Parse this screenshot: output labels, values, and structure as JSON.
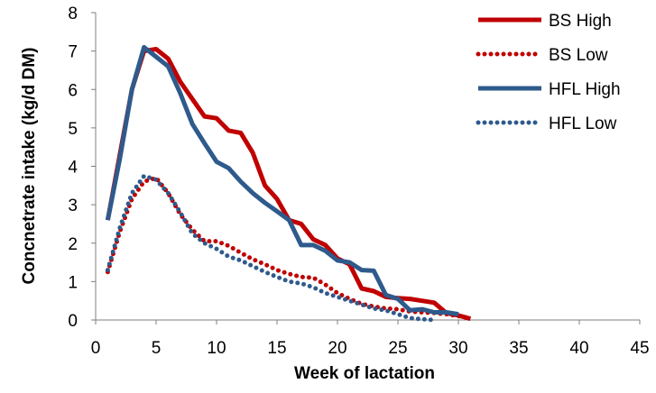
{
  "chart_data": {
    "type": "line",
    "title": "",
    "xlabel": "Week of lactation",
    "ylabel": "Concnetrate intake (kg/d DM)",
    "xlim": [
      0,
      45
    ],
    "ylim": [
      0,
      8
    ],
    "xticks": [
      0,
      5,
      10,
      15,
      20,
      25,
      30,
      35,
      40,
      45
    ],
    "yticks": [
      0,
      1,
      2,
      3,
      4,
      5,
      6,
      7,
      8
    ],
    "grid": false,
    "legend_position": "top-right",
    "series": [
      {
        "name": "BS High",
        "color": "#C00000",
        "style": "solid",
        "x": [
          1,
          2,
          3,
          4,
          5,
          6,
          7,
          8,
          9,
          10,
          11,
          12,
          13,
          14,
          15,
          16,
          17,
          18,
          19,
          20,
          21,
          22,
          23,
          24,
          25,
          26,
          27,
          28,
          29,
          30,
          31
        ],
        "y": [
          2.6,
          4.3,
          6.0,
          7.0,
          7.05,
          6.8,
          6.2,
          5.75,
          5.3,
          5.25,
          4.93,
          4.87,
          4.35,
          3.5,
          3.15,
          2.6,
          2.5,
          2.1,
          1.95,
          1.6,
          1.45,
          0.82,
          0.75,
          0.6,
          0.57,
          0.55,
          0.5,
          0.45,
          0.18,
          0.12,
          0.03
        ]
      },
      {
        "name": "BS Low",
        "color": "#C00000",
        "style": "dotted",
        "x": [
          1,
          2,
          3,
          4,
          5,
          6,
          7,
          8,
          9,
          10,
          11,
          12,
          13,
          14,
          15,
          16,
          17,
          18,
          19,
          20,
          21,
          22,
          23,
          24,
          25,
          26,
          27,
          28,
          29,
          30,
          31
        ],
        "y": [
          1.25,
          2.3,
          3.15,
          3.6,
          3.7,
          3.3,
          2.75,
          2.35,
          2.05,
          2.05,
          1.93,
          1.75,
          1.58,
          1.45,
          1.3,
          1.2,
          1.12,
          1.1,
          0.92,
          0.7,
          0.55,
          0.42,
          0.35,
          0.3,
          0.28,
          0.22,
          0.2,
          0.18,
          0.15,
          0.1,
          0.05
        ]
      },
      {
        "name": "HFL High",
        "color": "#2E5A8C",
        "style": "solid",
        "x": [
          1,
          2,
          3,
          4,
          5,
          6,
          7,
          8,
          9,
          10,
          11,
          12,
          13,
          14,
          15,
          16,
          17,
          18,
          19,
          20,
          21,
          22,
          23,
          24,
          25,
          26,
          27,
          28,
          29,
          30
        ],
        "y": [
          2.6,
          4.2,
          6.0,
          7.1,
          6.85,
          6.6,
          5.9,
          5.1,
          4.6,
          4.12,
          3.95,
          3.6,
          3.3,
          3.05,
          2.83,
          2.6,
          1.95,
          1.95,
          1.8,
          1.55,
          1.5,
          1.3,
          1.28,
          0.65,
          0.55,
          0.25,
          0.28,
          0.2,
          0.2,
          0.15
        ]
      },
      {
        "name": "HFL Low",
        "color": "#2E5A8C",
        "style": "dotted",
        "x": [
          1,
          2,
          3,
          4,
          5,
          6,
          7,
          8,
          9,
          10,
          11,
          12,
          13,
          14,
          15,
          16,
          17,
          18,
          19,
          20,
          21,
          22,
          23,
          24,
          25,
          26,
          27,
          28
        ],
        "y": [
          1.3,
          2.4,
          3.3,
          3.75,
          3.65,
          3.3,
          2.8,
          2.25,
          2.0,
          1.85,
          1.65,
          1.55,
          1.4,
          1.25,
          1.12,
          1.0,
          0.95,
          0.85,
          0.7,
          0.6,
          0.5,
          0.4,
          0.3,
          0.25,
          0.15,
          0.05,
          0.02,
          0.0
        ]
      }
    ]
  }
}
